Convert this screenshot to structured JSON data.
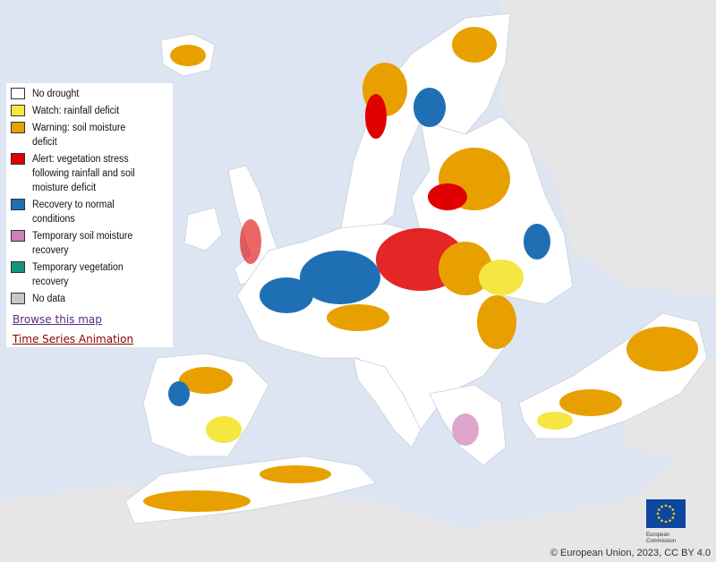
{
  "legend": {
    "items": [
      {
        "label": "No drought",
        "color": "#ffffff"
      },
      {
        "label": "Watch: rainfall deficit",
        "color": "#f5e642"
      },
      {
        "label": "Warning: soil moisture deficit",
        "color": "#e8a000"
      },
      {
        "label": "Alert: vegetation stress following rainfall and soil moisture deficit",
        "color": "#e00000"
      },
      {
        "label": "Recovery to normal conditions",
        "color": "#1f6fb5"
      },
      {
        "label": "Temporary soil moisture recovery",
        "color": "#d07fb8"
      },
      {
        "label": "Temporary vegetation recovery",
        "color": "#14957a"
      },
      {
        "label": "No data",
        "color": "#c8c8c8"
      }
    ]
  },
  "links": {
    "browse": "Browse this map",
    "animation": "Time Series Animation"
  },
  "logo": {
    "text": "European Commission"
  },
  "credit": "© European Union, 2023, CC BY 4.0"
}
